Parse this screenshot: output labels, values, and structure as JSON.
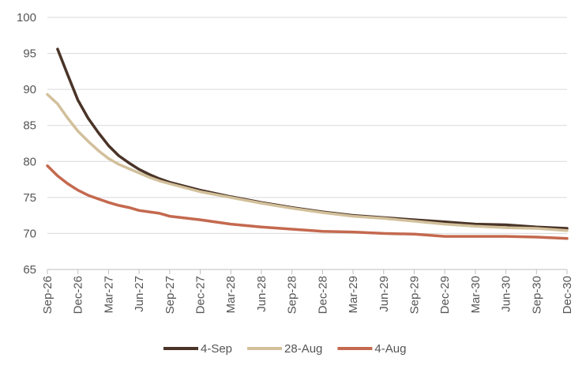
{
  "chart_data": {
    "type": "line",
    "title": "",
    "xlabel": "",
    "ylabel": "",
    "ylim": [
      65,
      100
    ],
    "yticks": [
      65,
      70,
      75,
      80,
      85,
      90,
      95,
      100
    ],
    "grid": "horizontal",
    "legend_position": "bottom",
    "x_tick_labels": [
      "Sep-26",
      "Dec-26",
      "Mar-27",
      "Jun-27",
      "Sep-27",
      "Dec-27",
      "Mar-28",
      "Jun-28",
      "Sep-28",
      "Dec-28",
      "Mar-29",
      "Jun-29",
      "Sep-29",
      "Dec-29",
      "Mar-30",
      "Jun-30",
      "Sep-30",
      "Dec-30"
    ],
    "x_tick_months": [
      0,
      3,
      6,
      9,
      12,
      15,
      18,
      21,
      24,
      27,
      30,
      33,
      36,
      39,
      42,
      45,
      48,
      51
    ],
    "series": [
      {
        "name": "4-Sep",
        "color": "#4a3428",
        "x": [
          1,
          2,
          3,
          4,
          5,
          6,
          7,
          8,
          9,
          10,
          11,
          12,
          15,
          18,
          21,
          24,
          27,
          30,
          33,
          36,
          39,
          42,
          45,
          48,
          51
        ],
        "y": [
          95.6,
          92.0,
          88.5,
          86.0,
          84.0,
          82.2,
          80.8,
          79.8,
          78.9,
          78.2,
          77.6,
          77.1,
          76.0,
          75.1,
          74.3,
          73.6,
          73.0,
          72.5,
          72.2,
          71.9,
          71.6,
          71.3,
          71.2,
          70.9,
          70.7
        ]
      },
      {
        "name": "28-Aug",
        "color": "#d2c09b",
        "x": [
          0,
          1,
          2,
          3,
          4,
          5,
          6,
          7,
          8,
          9,
          10,
          11,
          12,
          15,
          18,
          21,
          24,
          27,
          30,
          33,
          36,
          39,
          42,
          45,
          48,
          51
        ],
        "y": [
          89.3,
          88.0,
          86.0,
          84.2,
          82.8,
          81.5,
          80.4,
          79.6,
          79.0,
          78.4,
          77.8,
          77.3,
          76.9,
          75.8,
          75.0,
          74.2,
          73.5,
          72.9,
          72.4,
          72.1,
          71.7,
          71.3,
          71.0,
          70.8,
          70.7,
          70.4
        ]
      },
      {
        "name": "4-Aug",
        "color": "#c4694f",
        "x": [
          0,
          1,
          2,
          3,
          4,
          5,
          6,
          7,
          8,
          9,
          10,
          11,
          12,
          15,
          18,
          21,
          24,
          27,
          30,
          33,
          36,
          39,
          42,
          45,
          48,
          51
        ],
        "y": [
          79.4,
          78.0,
          76.9,
          76.0,
          75.3,
          74.8,
          74.3,
          73.9,
          73.6,
          73.2,
          73.0,
          72.8,
          72.4,
          71.9,
          71.3,
          70.9,
          70.6,
          70.3,
          70.2,
          70.0,
          69.9,
          69.6,
          69.6,
          69.6,
          69.5,
          69.3
        ]
      }
    ]
  }
}
